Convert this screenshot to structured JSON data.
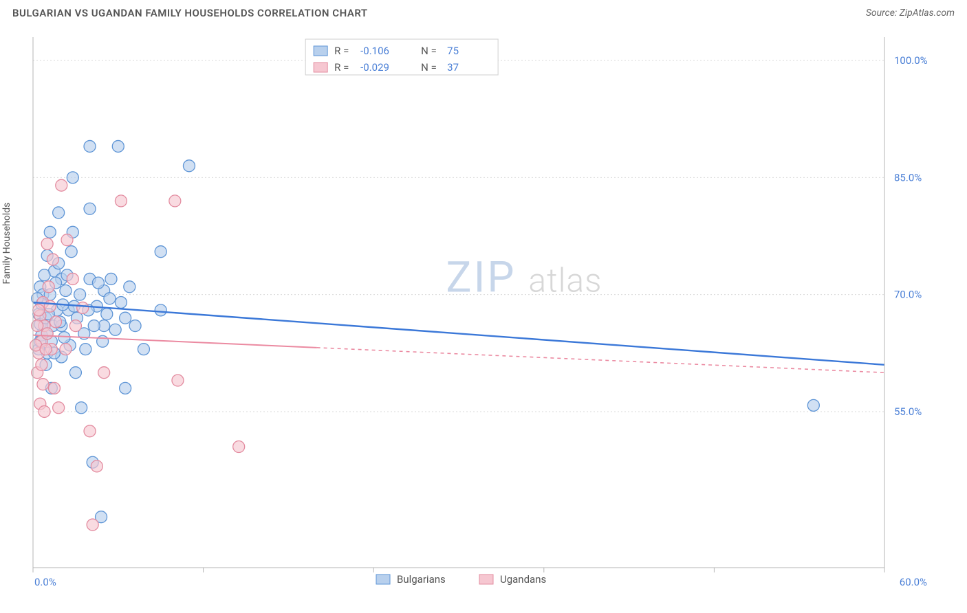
{
  "header": {
    "title": "BULGARIAN VS UGANDAN FAMILY HOUSEHOLDS CORRELATION CHART",
    "source_prefix": "Source: ",
    "source_name": "ZipAtlas.com"
  },
  "chart": {
    "type": "scatter",
    "ylabel": "Family Households",
    "xlim": [
      0,
      60
    ],
    "ylim": [
      35,
      103
    ],
    "xticks": [
      {
        "v": 0.0,
        "label": "0.0%"
      },
      {
        "v": 60.0,
        "label": "60.0%"
      }
    ],
    "xtick_minors": [
      12,
      24,
      36,
      48
    ],
    "yticks": [
      {
        "v": 55.0,
        "label": "55.0%"
      },
      {
        "v": 70.0,
        "label": "70.0%"
      },
      {
        "v": 85.0,
        "label": "85.0%"
      },
      {
        "v": 100.0,
        "label": "100.0%"
      }
    ],
    "background_color": "#ffffff",
    "grid_color": "#d9d9d9",
    "marker_radius": 8.5,
    "series": [
      {
        "name": "Bulgarians",
        "color_fill": "#b8d0ed",
        "color_stroke": "#5e95d6",
        "r_label": "R =",
        "r_value": "-0.106",
        "n_label": "N =",
        "n_value": "75",
        "trend": {
          "x1": 0,
          "y1": 69.0,
          "x2": 60,
          "y2": 61.0,
          "solid_to": 60
        },
        "points": [
          [
            0.4,
            67.5
          ],
          [
            0.5,
            66.2
          ],
          [
            0.6,
            64.8
          ],
          [
            0.8,
            66
          ],
          [
            0.5,
            71
          ],
          [
            0.7,
            70
          ],
          [
            0.9,
            67
          ],
          [
            1.0,
            65
          ],
          [
            1.0,
            62.5
          ],
          [
            1.4,
            66
          ],
          [
            1.2,
            70
          ],
          [
            1.7,
            68
          ],
          [
            1.0,
            75
          ],
          [
            1.5,
            73
          ],
          [
            2.0,
            72
          ],
          [
            2.3,
            70.5
          ],
          [
            2.0,
            66
          ],
          [
            2.5,
            68
          ],
          [
            2.9,
            68.5
          ],
          [
            2.0,
            62
          ],
          [
            2.6,
            63.5
          ],
          [
            1.2,
            78
          ],
          [
            1.8,
            80.5
          ],
          [
            2.8,
            78
          ],
          [
            4.0,
            81
          ],
          [
            4.0,
            72
          ],
          [
            4.5,
            68.5
          ],
          [
            5.0,
            70.5
          ],
          [
            5.4,
            69.5
          ],
          [
            5.0,
            66
          ],
          [
            3.7,
            63
          ],
          [
            3.0,
            60
          ],
          [
            1.3,
            58
          ],
          [
            3.4,
            55.5
          ],
          [
            2.8,
            85
          ],
          [
            4.0,
            89
          ],
          [
            6.0,
            89
          ],
          [
            9.0,
            75.5
          ],
          [
            9.0,
            68
          ],
          [
            7.8,
            63
          ],
          [
            11.0,
            86.5
          ],
          [
            6.5,
            58
          ],
          [
            4.2,
            48.5
          ],
          [
            4.8,
            41.5
          ],
          [
            55.0,
            55.8
          ],
          [
            0.4,
            63
          ],
          [
            0.6,
            68.8
          ],
          [
            0.8,
            72.5
          ],
          [
            1.1,
            67.5
          ],
          [
            1.3,
            64
          ],
          [
            1.6,
            71.5
          ],
          [
            1.9,
            66.5
          ],
          [
            2.2,
            64.5
          ],
          [
            2.4,
            72.5
          ],
          [
            2.7,
            75.5
          ],
          [
            3.1,
            67
          ],
          [
            3.3,
            70
          ],
          [
            3.6,
            65
          ],
          [
            3.9,
            68
          ],
          [
            4.3,
            66
          ],
          [
            4.6,
            71.5
          ],
          [
            4.9,
            64
          ],
          [
            5.2,
            67.5
          ],
          [
            5.5,
            72
          ],
          [
            5.8,
            65.5
          ],
          [
            6.2,
            69
          ],
          [
            6.5,
            67
          ],
          [
            6.8,
            71
          ],
          [
            7.2,
            66
          ],
          [
            0.3,
            69.5
          ],
          [
            0.5,
            64
          ],
          [
            0.9,
            61
          ],
          [
            1.5,
            62.5
          ],
          [
            1.8,
            74
          ],
          [
            2.1,
            68.7
          ]
        ]
      },
      {
        "name": "Ugandans",
        "color_fill": "#f6c7d1",
        "color_stroke": "#e38ca0",
        "r_label": "R =",
        "r_value": "-0.029",
        "n_label": "N =",
        "n_value": "37",
        "trend": {
          "x1": 0,
          "y1": 64.8,
          "x2": 60,
          "y2": 60.0,
          "solid_to": 20
        },
        "points": [
          [
            0.3,
            60
          ],
          [
            0.4,
            62.5
          ],
          [
            0.6,
            64
          ],
          [
            0.5,
            67.3
          ],
          [
            0.8,
            66
          ],
          [
            0.7,
            69
          ],
          [
            1.0,
            65
          ],
          [
            1.2,
            68.5
          ],
          [
            1.3,
            63
          ],
          [
            1.6,
            66.5
          ],
          [
            1.4,
            74.5
          ],
          [
            1.0,
            76.5
          ],
          [
            2.4,
            77
          ],
          [
            2.3,
            63
          ],
          [
            2.8,
            72
          ],
          [
            3.0,
            66
          ],
          [
            3.5,
            68.3
          ],
          [
            0.5,
            56
          ],
          [
            0.8,
            55
          ],
          [
            1.8,
            55.5
          ],
          [
            1.5,
            58
          ],
          [
            0.7,
            58.5
          ],
          [
            2.0,
            84
          ],
          [
            6.2,
            82
          ],
          [
            10.0,
            82
          ],
          [
            5.0,
            60
          ],
          [
            10.2,
            59
          ],
          [
            4.0,
            52.5
          ],
          [
            4.5,
            48
          ],
          [
            14.5,
            50.5
          ],
          [
            4.2,
            40.5
          ],
          [
            0.2,
            63.5
          ],
          [
            0.3,
            66
          ],
          [
            0.4,
            68
          ],
          [
            0.6,
            61
          ],
          [
            0.9,
            63
          ],
          [
            1.1,
            71
          ]
        ]
      }
    ],
    "bottom_legend": [
      {
        "label": "Bulgarians",
        "fill": "#b8d0ed",
        "stroke": "#5e95d6"
      },
      {
        "label": "Ugandans",
        "fill": "#f6c7d1",
        "stroke": "#e38ca0"
      }
    ],
    "watermark": {
      "part1": "ZIP",
      "part2": "atlas"
    }
  }
}
